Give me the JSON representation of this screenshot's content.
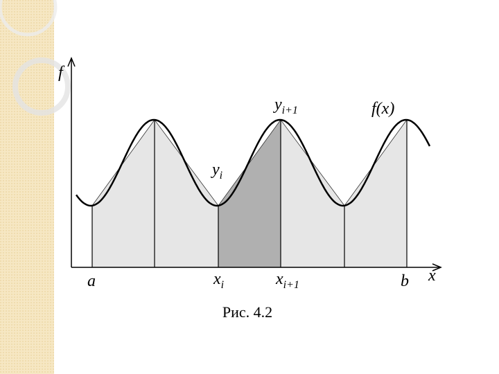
{
  "axes": {
    "y_label": "f",
    "x_label": "x"
  },
  "curve_label": "f(x)",
  "point_labels": [
    {
      "base": "y",
      "sub": "i"
    },
    {
      "base": "y",
      "sub": "i+1"
    }
  ],
  "x_labels": [
    {
      "base": "a"
    },
    {
      "base": "x",
      "sub": "i"
    },
    {
      "base": "x",
      "sub": "i+1"
    },
    {
      "base": "b"
    }
  ],
  "caption": "Рис. 4.2"
}
